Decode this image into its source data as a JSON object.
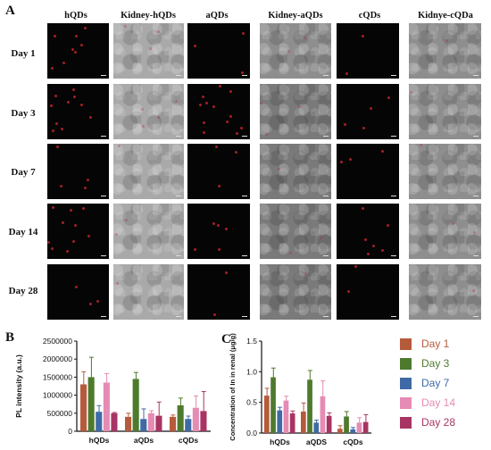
{
  "figure": {
    "panel_a": "A",
    "panel_b": "B",
    "panel_c": "C",
    "column_headers": [
      "hQDs",
      "Kidney-hQDs",
      "aQDs",
      "Kidney-aQDs",
      "cQDs",
      "Kidnye-cQDa"
    ],
    "row_labels": [
      "Day 1",
      "Day 3",
      "Day 7",
      "Day 14",
      "Day 28"
    ]
  },
  "legend": {
    "entries": [
      {
        "label": "Day 1",
        "color": "#b65a3c"
      },
      {
        "label": "Day 3",
        "color": "#4e7a2e"
      },
      {
        "label": "Day 7",
        "color": "#3f6aa6"
      },
      {
        "label": "Day 14",
        "color": "#e58bb4"
      },
      {
        "label": "Day 28",
        "color": "#a83463"
      }
    ]
  },
  "chart_data": [
    {
      "type": "bar",
      "ylabel": "PL intensity (a.u.)",
      "categories": [
        "hQDs",
        "aQDs",
        "cQDs"
      ],
      "yticks": [
        "0",
        "500000",
        "1000000",
        "1500000",
        "2000000",
        "2500000"
      ],
      "ylim": [
        0,
        2500000
      ],
      "series": [
        {
          "name": "Day 1",
          "color": "#b65a3c",
          "values": [
            1300000,
            400000,
            400000
          ],
          "errors": [
            350000,
            100000,
            50000
          ]
        },
        {
          "name": "Day 3",
          "color": "#4e7a2e",
          "values": [
            1500000,
            1450000,
            720000
          ],
          "errors": [
            550000,
            180000,
            200000
          ]
        },
        {
          "name": "Day 7",
          "color": "#3f6aa6",
          "values": [
            540000,
            340000,
            340000
          ],
          "errors": [
            170000,
            280000,
            80000
          ]
        },
        {
          "name": "Day 14",
          "color": "#e58bb4",
          "values": [
            1350000,
            500000,
            650000
          ],
          "errors": [
            250000,
            70000,
            330000
          ]
        },
        {
          "name": "Day 28",
          "color": "#a83463",
          "values": [
            500000,
            430000,
            560000
          ],
          "errors": [
            20000,
            380000,
            540000
          ]
        }
      ]
    },
    {
      "type": "bar",
      "ylabel": "Concentration of In in renal (μg/g)",
      "categories": [
        "hQDs",
        "aQDS",
        "cQDs"
      ],
      "yticks": [
        "0.0",
        "0.5",
        "1.0",
        "1.5"
      ],
      "ylim": [
        0,
        1.5
      ],
      "series": [
        {
          "name": "Day 1",
          "color": "#b65a3c",
          "values": [
            0.61,
            0.35,
            0.07
          ],
          "errors": [
            0.12,
            0.14,
            0.05
          ]
        },
        {
          "name": "Day 3",
          "color": "#4e7a2e",
          "values": [
            0.91,
            0.87,
            0.27
          ],
          "errors": [
            0.15,
            0.15,
            0.08
          ]
        },
        {
          "name": "Day 7",
          "color": "#3f6aa6",
          "values": [
            0.37,
            0.17,
            0.06
          ],
          "errors": [
            0.05,
            0.04,
            0.03
          ]
        },
        {
          "name": "Day 14",
          "color": "#e58bb4",
          "values": [
            0.53,
            0.6,
            0.17
          ],
          "errors": [
            0.07,
            0.25,
            0.08
          ]
        },
        {
          "name": "Day 28",
          "color": "#a83463",
          "values": [
            0.32,
            0.28,
            0.18
          ],
          "errors": [
            0.04,
            0.05,
            0.12
          ]
        }
      ]
    }
  ]
}
